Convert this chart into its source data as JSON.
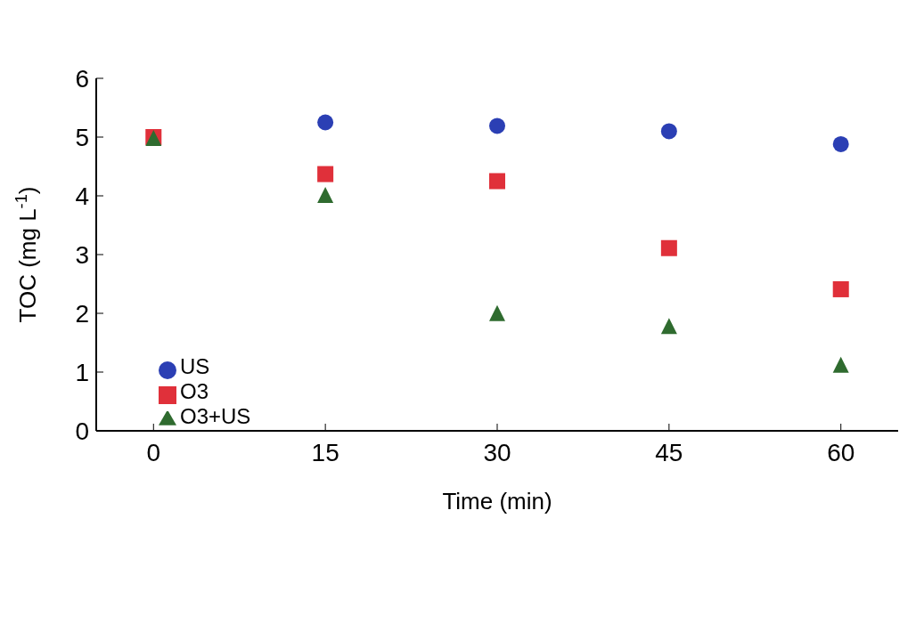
{
  "chart_data": {
    "type": "scatter",
    "xlabel": "Time (min)",
    "ylabel": "TOC (mg L$^{-1}$)",
    "x": [
      0,
      15,
      30,
      45,
      60
    ],
    "xlim": [
      -5,
      65
    ],
    "xticks": [
      0,
      15,
      30,
      45,
      60
    ],
    "ylim": [
      0,
      6
    ],
    "yticks": [
      0,
      1,
      2,
      3,
      4,
      5,
      6
    ],
    "grid": false,
    "legend": "bottom left",
    "series": [
      {
        "name": "US",
        "color": "#2b3fb4",
        "marker": "circle",
        "values": [
          null,
          5.25,
          5.19,
          5.1,
          4.88
        ]
      },
      {
        "name": "O3",
        "color": "#e0303a",
        "marker": "square",
        "values": [
          5.0,
          4.37,
          4.25,
          3.11,
          2.41
        ]
      },
      {
        "name": "O3+US",
        "color": "#2f6b2f",
        "marker": "triangle",
        "values": [
          4.97,
          4.0,
          1.99,
          1.77,
          1.11
        ]
      }
    ]
  }
}
